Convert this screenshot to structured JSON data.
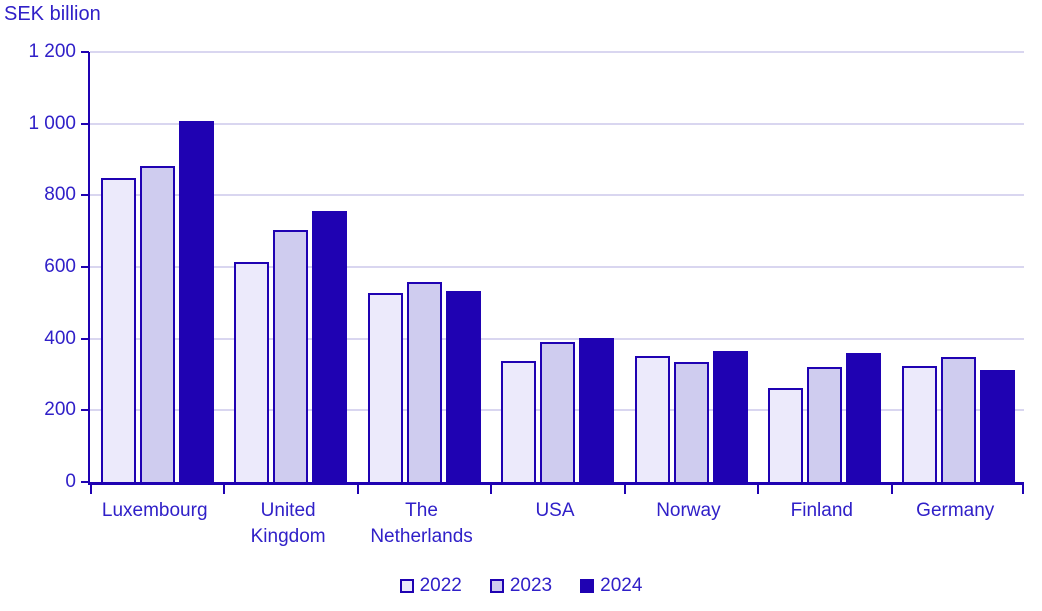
{
  "title": "SEK billion",
  "colors": {
    "accent_dark": "#1f02b2",
    "text": "#3020c8",
    "gridline": "#d9d6f0",
    "background": "#ffffff",
    "series_2022_fill": "#eceafb",
    "series_2023_fill": "#cfccef",
    "series_2024_fill": "#1f02b2"
  },
  "chart_data": {
    "type": "bar",
    "title": "SEK billion",
    "xlabel": "",
    "ylabel": "SEK billion",
    "ylim": [
      0,
      1200
    ],
    "ytick_step": 200,
    "yticks": [
      {
        "value": 0,
        "label": "0"
      },
      {
        "value": 200,
        "label": "200"
      },
      {
        "value": 400,
        "label": "400"
      },
      {
        "value": 600,
        "label": "600"
      },
      {
        "value": 800,
        "label": "800"
      },
      {
        "value": 1000,
        "label": "1 000"
      },
      {
        "value": 1200,
        "label": "1 200"
      }
    ],
    "grid": true,
    "legend_position": "bottom",
    "categories": [
      "Luxembourg",
      "United Kingdom",
      "The Netherlands",
      "USA",
      "Norway",
      "Finland",
      "Germany"
    ],
    "series": [
      {
        "name": "2022",
        "color": "#eceafb",
        "values": [
          847,
          615,
          528,
          338,
          352,
          263,
          324
        ]
      },
      {
        "name": "2023",
        "color": "#cfccef",
        "values": [
          883,
          704,
          559,
          392,
          336,
          322,
          348
        ]
      },
      {
        "name": "2024",
        "color": "#1f02b2",
        "values": [
          1008,
          755,
          533,
          401,
          366,
          361,
          313
        ]
      }
    ]
  }
}
